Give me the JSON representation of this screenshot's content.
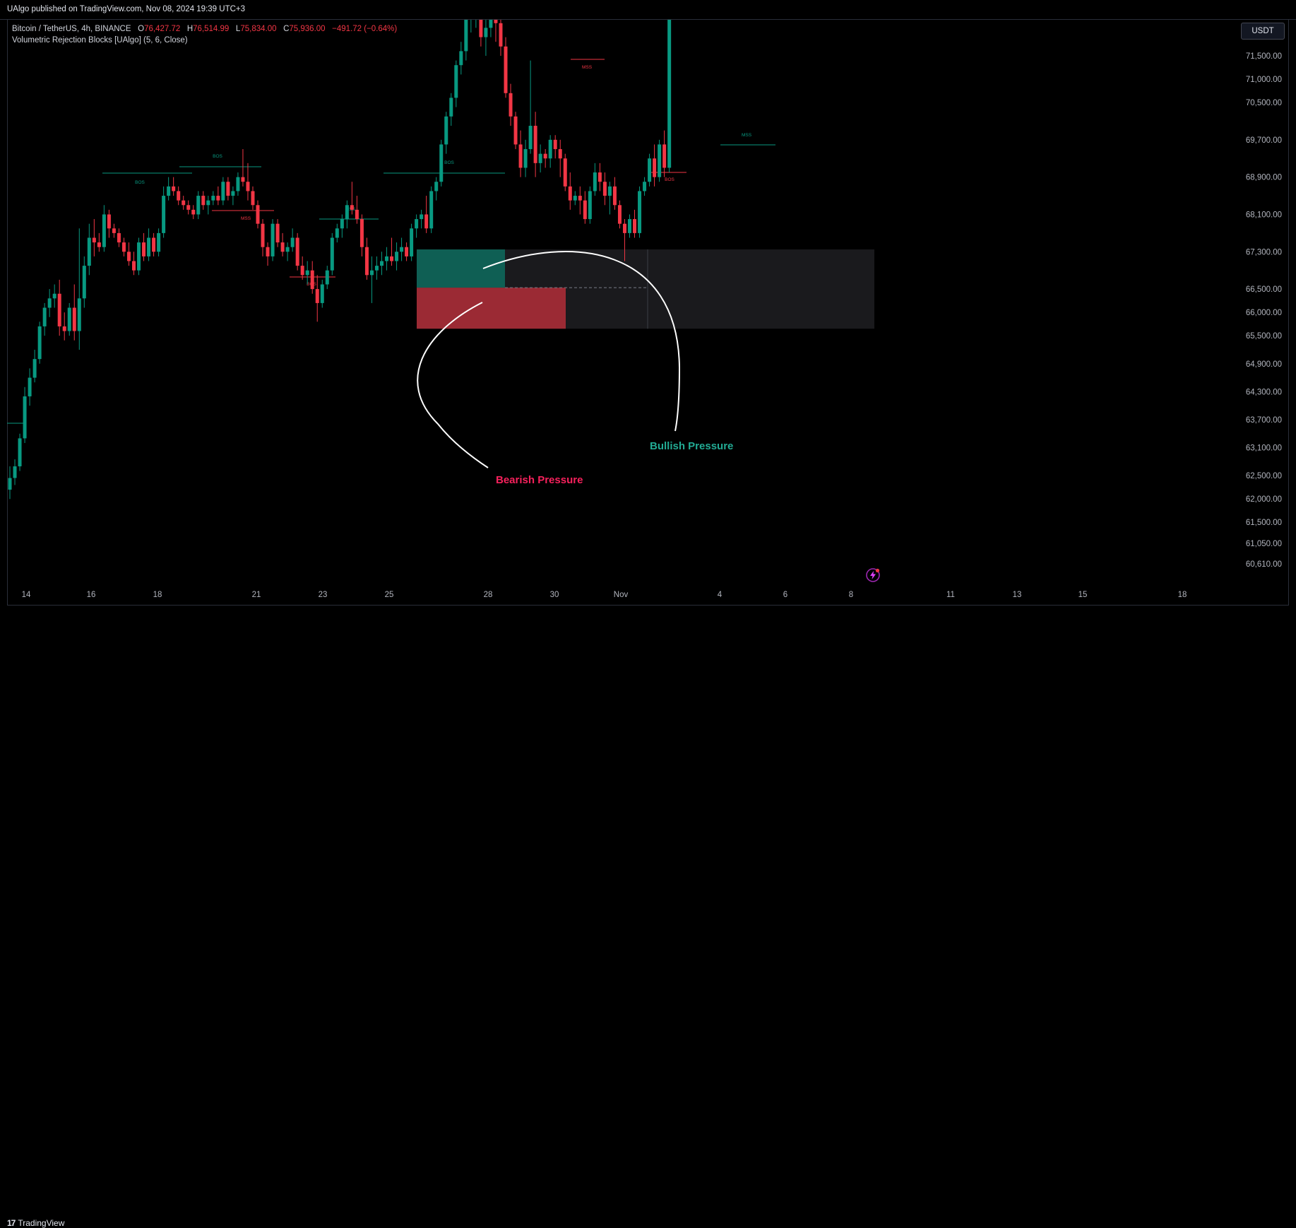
{
  "header": {
    "published": "UAlgo published on TradingView.com, Nov 08, 2024 19:39 UTC+3"
  },
  "legend": {
    "symbol": "Bitcoin / TetherUS, 4h, BINANCE",
    "o_label": "O",
    "o_value": "76,427.72",
    "h_label": "H",
    "h_value": "76,514.99",
    "l_label": "L",
    "l_value": "75,834.00",
    "c_label": "C",
    "c_value": "75,936.00",
    "change": "−491.72 (−0.64%)",
    "indicator": "Volumetric Rejection Blocks [UAlgo] (5, 6, Close)"
  },
  "currency_button": "USDT",
  "footer": {
    "brand": "TradingView",
    "brand_mark": "17"
  },
  "colors": {
    "bull": "#089981",
    "bear": "#f23645",
    "bg": "#000000",
    "bull_text": "#22ab94",
    "bear_text": "#f7215c"
  },
  "chart_data": {
    "type": "candlestick",
    "symbol": "BTCUSDT",
    "interval": "4h",
    "exchange": "BINANCE",
    "y_ticks": [
      "71,500.00",
      "71,000.00",
      "70,500.00",
      "69,700.00",
      "68,900.00",
      "68,100.00",
      "67,300.00",
      "66,500.00",
      "66,000.00",
      "65,500.00",
      "64,900.00",
      "64,300.00",
      "63,700.00",
      "63,100.00",
      "62,500.00",
      "62,000.00",
      "61,500.00",
      "61,050.00",
      "60,610.00"
    ],
    "x_ticks": [
      "14",
      "16",
      "18",
      "21",
      "23",
      "25",
      "28",
      "30",
      "Nov",
      "4",
      "6",
      "8",
      "11",
      "13",
      "15",
      "18"
    ],
    "candles": [
      [
        62200,
        62700,
        62000,
        62450
      ],
      [
        62450,
        62850,
        62300,
        62700
      ],
      [
        62700,
        63400,
        62600,
        63300
      ],
      [
        63300,
        64400,
        63200,
        64200
      ],
      [
        64200,
        64800,
        64000,
        64600
      ],
      [
        64600,
        65200,
        64500,
        65000
      ],
      [
        65000,
        65800,
        64900,
        65700
      ],
      [
        65700,
        66200,
        65500,
        66100
      ],
      [
        66100,
        66500,
        65900,
        66300
      ],
      [
        66300,
        66600,
        66100,
        66400
      ],
      [
        66400,
        66700,
        65500,
        65700
      ],
      [
        65700,
        66000,
        65400,
        65600
      ],
      [
        65600,
        66200,
        65500,
        66100
      ],
      [
        66100,
        66600,
        65400,
        65600
      ],
      [
        65600,
        67800,
        65200,
        66300
      ],
      [
        66300,
        67200,
        66100,
        67000
      ],
      [
        67000,
        67900,
        66800,
        67600
      ],
      [
        67600,
        68000,
        67200,
        67500
      ],
      [
        67500,
        67700,
        67300,
        67400
      ],
      [
        67400,
        68300,
        67300,
        68100
      ],
      [
        68100,
        68200,
        67600,
        67800
      ],
      [
        67800,
        67900,
        67600,
        67700
      ],
      [
        67700,
        67800,
        67400,
        67500
      ],
      [
        67500,
        67600,
        67200,
        67300
      ],
      [
        67300,
        67500,
        67000,
        67100
      ],
      [
        67100,
        67300,
        66800,
        66900
      ],
      [
        66900,
        67600,
        66800,
        67500
      ],
      [
        67500,
        67700,
        67100,
        67200
      ],
      [
        67200,
        67800,
        67100,
        67600
      ],
      [
        67600,
        67700,
        67200,
        67300
      ],
      [
        67300,
        67800,
        67200,
        67700
      ],
      [
        67700,
        68700,
        67600,
        68500
      ],
      [
        68500,
        68900,
        68400,
        68700
      ],
      [
        68700,
        68900,
        68500,
        68600
      ],
      [
        68600,
        68700,
        68300,
        68400
      ],
      [
        68400,
        68500,
        68200,
        68300
      ],
      [
        68300,
        68400,
        68100,
        68200
      ],
      [
        68200,
        68300,
        68000,
        68100
      ],
      [
        68100,
        68600,
        68000,
        68500
      ],
      [
        68500,
        68600,
        68200,
        68300
      ],
      [
        68300,
        68500,
        68100,
        68400
      ],
      [
        68400,
        68600,
        68300,
        68500
      ],
      [
        68500,
        68700,
        68300,
        68400
      ],
      [
        68400,
        68900,
        68300,
        68800
      ],
      [
        68800,
        68900,
        68400,
        68500
      ],
      [
        68500,
        68700,
        68300,
        68600
      ],
      [
        68600,
        69000,
        68500,
        68900
      ],
      [
        68900,
        69500,
        68700,
        68800
      ],
      [
        68800,
        69200,
        68400,
        68600
      ],
      [
        68600,
        68700,
        68200,
        68300
      ],
      [
        68300,
        68400,
        67800,
        67900
      ],
      [
        67900,
        68000,
        67200,
        67400
      ],
      [
        67400,
        67500,
        67000,
        67200
      ],
      [
        67200,
        68000,
        67100,
        67900
      ],
      [
        67900,
        68000,
        67400,
        67500
      ],
      [
        67500,
        67700,
        67200,
        67300
      ],
      [
        67300,
        67500,
        67100,
        67400
      ],
      [
        67400,
        67800,
        67300,
        67600
      ],
      [
        67600,
        67700,
        66900,
        67000
      ],
      [
        67000,
        67200,
        66700,
        66800
      ],
      [
        66800,
        67100,
        66600,
        66900
      ],
      [
        66900,
        67100,
        66400,
        66500
      ],
      [
        66500,
        66800,
        65800,
        66200
      ],
      [
        66200,
        66700,
        66100,
        66600
      ],
      [
        66600,
        67000,
        66500,
        66900
      ],
      [
        66900,
        67700,
        66800,
        67600
      ],
      [
        67600,
        67900,
        67500,
        67800
      ],
      [
        67800,
        68100,
        67600,
        68000
      ],
      [
        68000,
        68400,
        67800,
        68300
      ],
      [
        68300,
        68800,
        68100,
        68200
      ],
      [
        68200,
        68500,
        67900,
        68000
      ],
      [
        68000,
        68100,
        67200,
        67400
      ],
      [
        67400,
        67600,
        66700,
        66800
      ],
      [
        66800,
        67200,
        66200,
        66900
      ],
      [
        66900,
        67200,
        66700,
        67000
      ],
      [
        67000,
        67300,
        66800,
        67100
      ],
      [
        67100,
        67400,
        66900,
        67200
      ],
      [
        67200,
        67600,
        67000,
        67100
      ],
      [
        67100,
        67500,
        66900,
        67300
      ],
      [
        67300,
        67600,
        67100,
        67400
      ],
      [
        67400,
        67500,
        67100,
        67200
      ],
      [
        67200,
        67900,
        67100,
        67800
      ],
      [
        67800,
        68100,
        67600,
        68000
      ],
      [
        68000,
        68200,
        67800,
        68100
      ],
      [
        68100,
        68500,
        67700,
        67800
      ],
      [
        67800,
        68700,
        67700,
        68600
      ],
      [
        68600,
        68900,
        68400,
        68800
      ],
      [
        68800,
        69700,
        68700,
        69600
      ],
      [
        69600,
        70300,
        69400,
        70200
      ],
      [
        70200,
        70700,
        70000,
        70600
      ],
      [
        70600,
        71400,
        70400,
        71300
      ],
      [
        71300,
        71800,
        71100,
        71600
      ],
      [
        71600,
        72400,
        71400,
        72300
      ],
      [
        72300,
        72500,
        72000,
        72300
      ],
      [
        72300,
        72600,
        72100,
        72400
      ],
      [
        72400,
        72500,
        71700,
        71900
      ],
      [
        71900,
        72300,
        71500,
        72100
      ],
      [
        72100,
        72400,
        71900,
        72300
      ],
      [
        72300,
        72600,
        71800,
        72200
      ],
      [
        72200,
        72500,
        71500,
        71700
      ],
      [
        71700,
        71900,
        70600,
        70700
      ],
      [
        70700,
        70900,
        70000,
        70200
      ],
      [
        70200,
        70300,
        69500,
        69600
      ],
      [
        69600,
        69900,
        68900,
        69100
      ],
      [
        69100,
        69700,
        68900,
        69500
      ],
      [
        69500,
        71400,
        69400,
        70000
      ],
      [
        70000,
        70300,
        68900,
        69200
      ],
      [
        69200,
        69600,
        69000,
        69400
      ],
      [
        69400,
        69500,
        69100,
        69300
      ],
      [
        69300,
        69800,
        69100,
        69700
      ],
      [
        69700,
        69800,
        69300,
        69500
      ],
      [
        69500,
        69700,
        68900,
        69300
      ],
      [
        69300,
        69400,
        68600,
        68700
      ],
      [
        68700,
        69000,
        68200,
        68400
      ],
      [
        68400,
        68600,
        68300,
        68500
      ],
      [
        68500,
        68700,
        68100,
        68400
      ],
      [
        68400,
        68600,
        67900,
        68000
      ],
      [
        68000,
        68700,
        67900,
        68600
      ],
      [
        68600,
        69200,
        68500,
        69000
      ],
      [
        69000,
        69200,
        68600,
        68800
      ],
      [
        68800,
        69000,
        68300,
        68500
      ],
      [
        68500,
        68800,
        68100,
        68700
      ],
      [
        68700,
        68900,
        68200,
        68300
      ],
      [
        68300,
        68400,
        67800,
        67900
      ],
      [
        67900,
        68000,
        67100,
        67700
      ],
      [
        67700,
        68100,
        67600,
        68000
      ],
      [
        68000,
        68200,
        67600,
        67700
      ],
      [
        67700,
        68700,
        67600,
        68600
      ],
      [
        68600,
        68900,
        68500,
        68800
      ],
      [
        68800,
        69400,
        68700,
        69300
      ],
      [
        69300,
        69600,
        68700,
        68900
      ],
      [
        68900,
        69700,
        68800,
        69600
      ],
      [
        69600,
        69900,
        68900,
        69100
      ],
      [
        69100,
        74200,
        69000,
        73900
      ]
    ],
    "annotations": [
      {
        "text": "BOS",
        "color": "#089981"
      },
      {
        "text": "BOS",
        "color": "#089981"
      },
      {
        "text": "MSS",
        "color": "#f23645"
      },
      {
        "text": "MSS",
        "color": "#089981"
      },
      {
        "text": "BOS",
        "color": "#f23645"
      },
      {
        "text": "BOS",
        "color": "#089981"
      },
      {
        "text": "MSS",
        "color": "#f23645"
      },
      {
        "text": "BOS",
        "color": "#f23645"
      },
      {
        "text": "MSS",
        "color": "#089981"
      }
    ],
    "rejection_block": {
      "top": 67350,
      "mid": 66530,
      "bottom": 65650
    },
    "labels": {
      "bullish": "Bullish Pressure",
      "bearish": "Bearish Pressure"
    }
  }
}
